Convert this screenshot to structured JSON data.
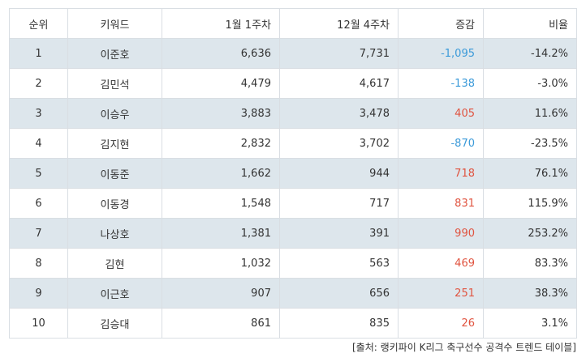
{
  "table": {
    "headers": {
      "rank": "순위",
      "keyword": "키워드",
      "week1": "1월 1주차",
      "week2": "12월 4주차",
      "diff": "증감",
      "ratio": "비율"
    },
    "rows": [
      {
        "rank": "1",
        "keyword": "이준호",
        "week1": "6,636",
        "week2": "7,731",
        "diff": "-1,095",
        "ratio": "-14.2%",
        "sign": "neg"
      },
      {
        "rank": "2",
        "keyword": "김민석",
        "week1": "4,479",
        "week2": "4,617",
        "diff": "-138",
        "ratio": "-3.0%",
        "sign": "neg"
      },
      {
        "rank": "3",
        "keyword": "이승우",
        "week1": "3,883",
        "week2": "3,478",
        "diff": "405",
        "ratio": "11.6%",
        "sign": "pos"
      },
      {
        "rank": "4",
        "keyword": "김지현",
        "week1": "2,832",
        "week2": "3,702",
        "diff": "-870",
        "ratio": "-23.5%",
        "sign": "neg"
      },
      {
        "rank": "5",
        "keyword": "이동준",
        "week1": "1,662",
        "week2": "944",
        "diff": "718",
        "ratio": "76.1%",
        "sign": "pos"
      },
      {
        "rank": "6",
        "keyword": "이동경",
        "week1": "1,548",
        "week2": "717",
        "diff": "831",
        "ratio": "115.9%",
        "sign": "pos"
      },
      {
        "rank": "7",
        "keyword": "나상호",
        "week1": "1,381",
        "week2": "391",
        "diff": "990",
        "ratio": "253.2%",
        "sign": "pos"
      },
      {
        "rank": "8",
        "keyword": "김현",
        "week1": "1,032",
        "week2": "563",
        "diff": "469",
        "ratio": "83.3%",
        "sign": "pos"
      },
      {
        "rank": "9",
        "keyword": "이근호",
        "week1": "907",
        "week2": "656",
        "diff": "251",
        "ratio": "38.3%",
        "sign": "pos"
      },
      {
        "rank": "10",
        "keyword": "김승대",
        "week1": "861",
        "week2": "835",
        "diff": "26",
        "ratio": "3.1%",
        "sign": "pos"
      }
    ]
  },
  "colors": {
    "positive": "#e0533f",
    "negative": "#3b9ad9",
    "stripe": "#dde6ec",
    "border": "#d9dee3"
  },
  "source": "[출처: 랭키파이 K리그 축구선수 공격수 트렌드 테이블]"
}
